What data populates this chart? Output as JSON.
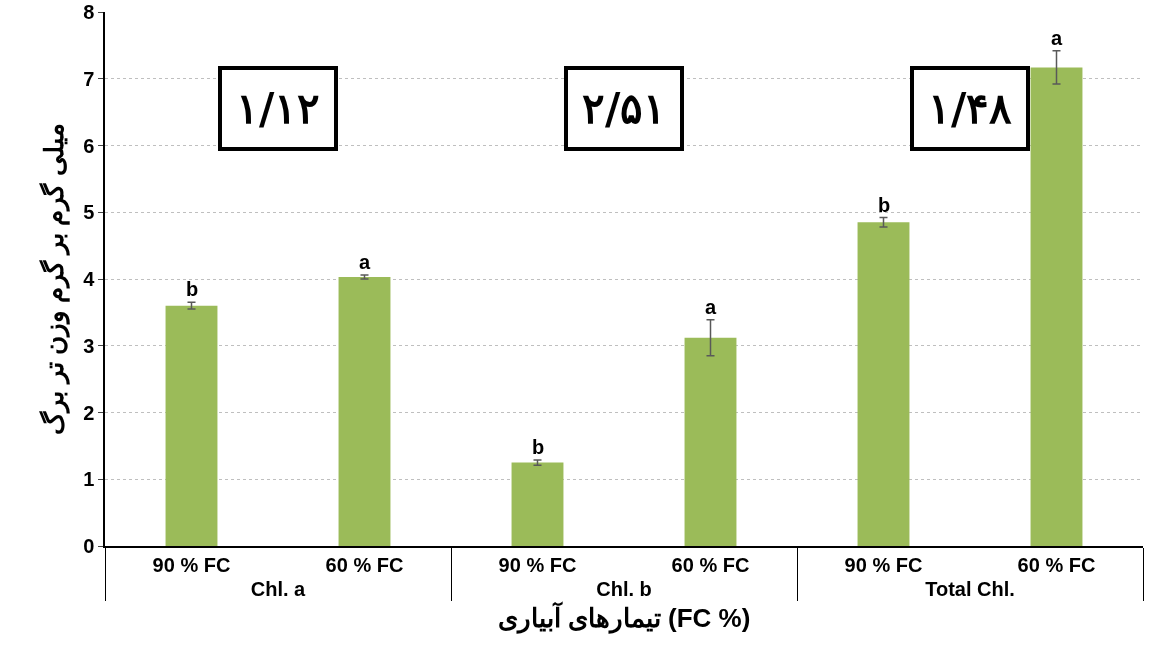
{
  "chart_data": {
    "type": "bar",
    "xlabel": "تیمارهای آبیاری (FC %)",
    "ylabel": "میلی گرم بر گرم وزن تر برگ",
    "categories": [
      "90 % FC",
      "60 % FC",
      "90 % FC",
      "60 % FC",
      "90 % FC",
      "60 % FC"
    ],
    "values": [
      3.6,
      4.03,
      1.25,
      3.12,
      4.85,
      7.17
    ],
    "errors": [
      0.05,
      0.03,
      0.04,
      0.27,
      0.07,
      0.25
    ],
    "value_labels": [
      "b",
      "a",
      "b",
      "a",
      "b",
      "a"
    ],
    "color": "#9bbb59",
    "ylim": [
      0,
      8
    ],
    "yticks": [
      0,
      1,
      2,
      3,
      4,
      5,
      6,
      7,
      8
    ],
    "grid": "y",
    "legend": false,
    "annotations": [
      "۱/۱۲",
      "۲/۵۱",
      "۱/۴۸",
      "Chl. a",
      "Chl. b",
      "Total Chl."
    ]
  }
}
